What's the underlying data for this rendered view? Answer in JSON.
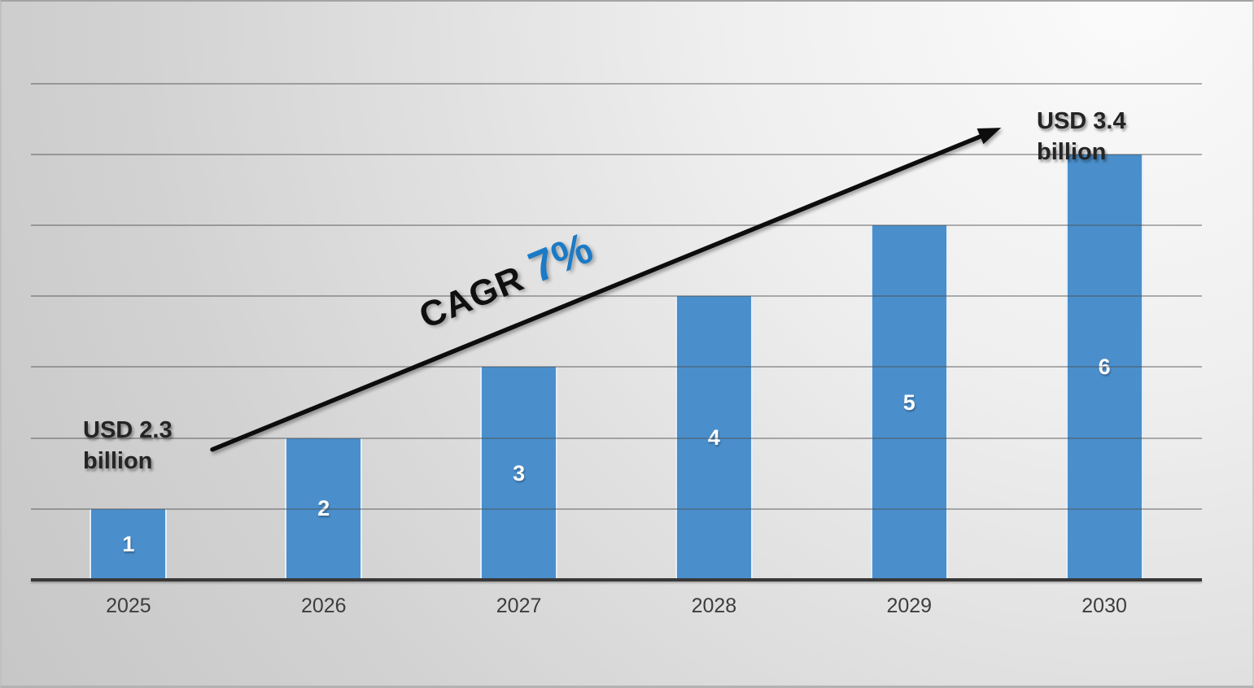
{
  "chart_data": {
    "type": "bar",
    "title": "",
    "categories": [
      "2025",
      "2026",
      "2027",
      "2028",
      "2029",
      "2030"
    ],
    "values": [
      1,
      2,
      3,
      4,
      5,
      6
    ],
    "bar_labels": [
      "1",
      "2",
      "3",
      "4",
      "5",
      "6"
    ],
    "xlabel": "",
    "ylabel": "",
    "ylim": [
      0,
      7
    ],
    "gridline_step": 1,
    "grid": "horizontal gridlines on, no y-axis tick labels",
    "legend": "none",
    "colors": {
      "bar_fill": "#4A8FCC",
      "bar_edge": "#FFFFFF",
      "gridline": "#9A9A9A",
      "axis_line": "#383838",
      "bar_label_text": "#FFFFFF",
      "x_label_text": "#3D3D3D",
      "annotation_text": "#242424",
      "trend_arrow": "#0D0D0D",
      "trend_label_text": "#0F0F0F",
      "trend_value_text": "#1B7AC6"
    },
    "annotations": {
      "start": {
        "line1": "USD  2.3",
        "line2": "billion"
      },
      "end": {
        "line1": "USD 3.4",
        "line2": "billion"
      }
    },
    "trend": {
      "label": "CAGR",
      "value": "7%",
      "description": "upward arrow from 2025 bar toward 2030 annotation"
    }
  }
}
